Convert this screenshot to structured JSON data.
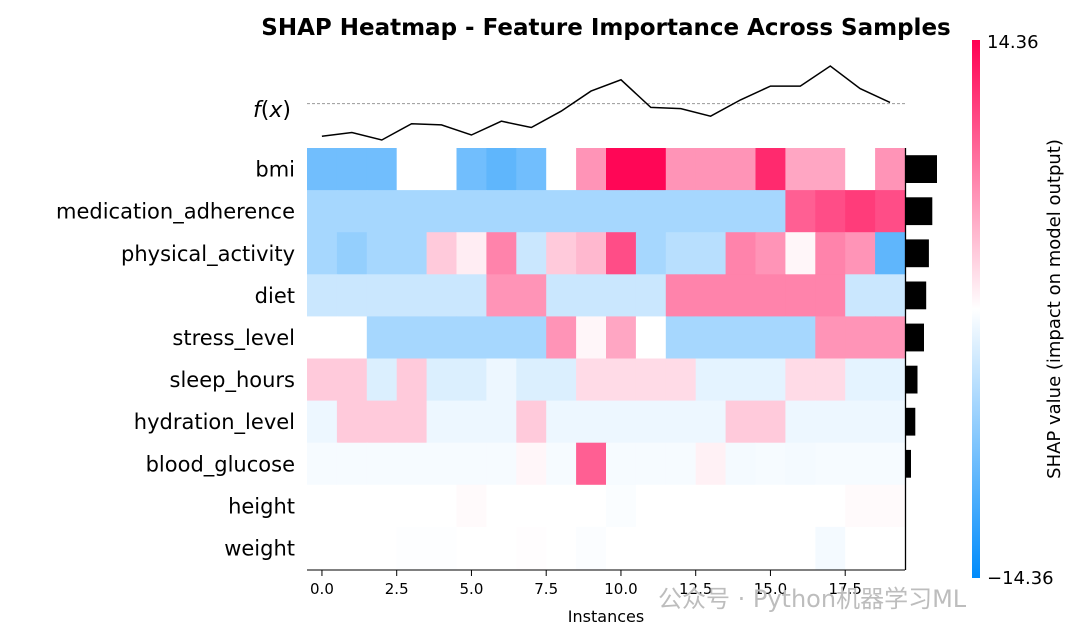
{
  "chart_data": {
    "type": "heatmap",
    "title": "SHAP Heatmap - Feature Importance Across Samples",
    "xlabel": "Instances",
    "fx_label": "f(x)",
    "colorbar_label": "SHAP value (impact on model output)",
    "color_range": [
      -14.36,
      14.36
    ],
    "colorbar_ticks": [
      "14.36",
      "−14.36"
    ],
    "colors": {
      "negative": "#008bfb",
      "neutral": "#ffffff",
      "positive": "#ff0052"
    },
    "x_ticks": [
      0.0,
      2.5,
      5.0,
      7.5,
      10.0,
      12.5,
      15.0,
      17.5
    ],
    "x_tick_labels": [
      "0.0",
      "2.5",
      "5.0",
      "7.5",
      "10.0",
      "12.5",
      "15.0",
      "17.5"
    ],
    "features": [
      "bmi",
      "medication_adherence",
      "physical_activity",
      "diet",
      "stress_level",
      "sleep_hours",
      "hydration_level",
      "blood_glucose",
      "height",
      "weight"
    ],
    "values": [
      [
        -8,
        -8,
        -8,
        0,
        0,
        -8,
        -9,
        -8,
        0,
        6,
        14,
        14,
        6,
        6,
        6,
        12,
        5,
        5,
        0,
        6
      ],
      [
        -5,
        -5,
        -5,
        -5,
        -5,
        -5,
        -5,
        -5,
        -5,
        -5,
        -5,
        -5,
        -5,
        -5,
        -5,
        -5,
        9,
        10,
        11,
        10
      ],
      [
        -5,
        -6,
        -5,
        -5,
        3,
        1,
        7,
        -3,
        3,
        4,
        10,
        -5,
        -4,
        -4,
        7,
        6,
        0.5,
        7,
        6,
        -9
      ],
      [
        -3,
        -3,
        -3,
        -3,
        -3,
        -3,
        6,
        6,
        -3,
        -3,
        -3,
        -3,
        7,
        7,
        7,
        7,
        7,
        7,
        -3,
        -3
      ],
      [
        0,
        0,
        -5,
        -5,
        -5,
        -5,
        -5,
        -5,
        6,
        0.5,
        5,
        0,
        -5,
        -5,
        -5,
        -5,
        -5,
        6,
        6,
        6
      ],
      [
        3,
        3,
        -2,
        3,
        -2,
        -2,
        -1,
        -2,
        -2,
        2,
        2,
        2,
        2,
        -1.5,
        -1.5,
        -1.5,
        2,
        2,
        -1.5,
        -1.5
      ],
      [
        -1,
        3,
        3,
        3,
        -1,
        -1,
        -1,
        3,
        -1,
        -1,
        -1,
        -1,
        -1,
        -1,
        3,
        3,
        -1,
        -1,
        -1,
        -1
      ],
      [
        -0.5,
        -0.5,
        -0.5,
        -0.5,
        -0.5,
        -0.5,
        -0.5,
        0.5,
        -0.5,
        9,
        -0.5,
        -0.5,
        -0.5,
        0.8,
        -0.6,
        -0.5,
        -0.6,
        -0.5,
        -0.5,
        -0.5
      ],
      [
        0,
        0,
        0,
        0,
        0,
        0.3,
        0,
        0,
        0,
        0,
        -0.3,
        0,
        0,
        0,
        0,
        0,
        0,
        0,
        0.3,
        0.3
      ],
      [
        0,
        0,
        0,
        -0.1,
        -0.1,
        0,
        0,
        0.1,
        0,
        -0.2,
        0,
        0,
        0,
        0,
        0,
        0,
        0,
        -0.6,
        0,
        0
      ]
    ],
    "fx_values": [
      -1.0,
      -0.7,
      -1.3,
      0.0,
      -0.1,
      -0.9,
      0.2,
      -0.3,
      1.0,
      2.6,
      3.5,
      1.3,
      1.2,
      0.6,
      1.9,
      3.0,
      3.0,
      4.6,
      2.8,
      1.7
    ],
    "fx_reference": 1.6,
    "mean_abs_importance": [
      1.0,
      0.85,
      0.74,
      0.65,
      0.58,
      0.37,
      0.3,
      0.16,
      0.0,
      0.0
    ]
  },
  "watermark": "公众号 · Python机器学习ML"
}
